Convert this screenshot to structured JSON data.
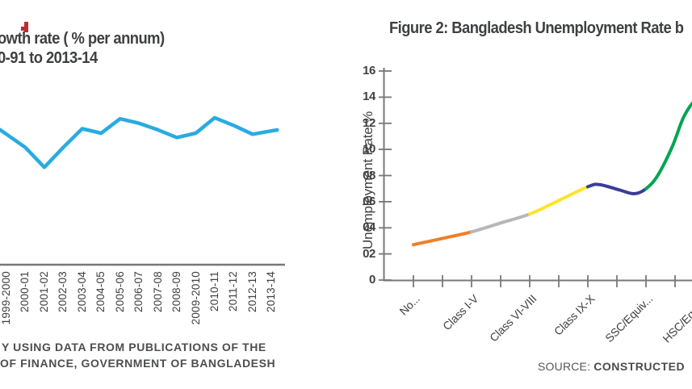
{
  "page": {
    "background_color": "#FFFFFF",
    "red_fragment_color": "#BE2B30"
  },
  "left_chart": {
    "title_line1": "owth rate ( % per annum)",
    "title_line2": "0-91 to 2013-14",
    "line_color": "#29ABE2",
    "axis_color": "#77787B",
    "x_labels": [
      "1999-2000",
      "2000-01",
      "2001-02",
      "2002-03",
      "2003-04",
      "2004-05",
      "2005-06",
      "2006-07",
      "2007-08",
      "2008-09",
      "2009-2010",
      "2010-11",
      "2011-12",
      "2012-13",
      "2013-14"
    ],
    "source_line1": "Y USING DATA FROM PUBLICATIONS OF THE",
    "source_line2": "OF FINANCE, GOVERNMENT OF BANGLADESH"
  },
  "right_chart": {
    "title": "Figure 2: Bangladesh Unemployment Rate b",
    "y_axis_label": "Unemployment Rate %",
    "y_tick_labels": [
      "16",
      "14",
      "12",
      "10",
      "08",
      "06",
      "04",
      "02",
      "0"
    ],
    "x_labels": [
      "No...",
      "Class I-V",
      "Class VI-VIII",
      "Class IX-X",
      "SSC/Equiv...",
      "HSC/Equiv..."
    ],
    "axis_color": "#77787B",
    "source_prefix": "SOURCE:",
    "source_bold": "CONSTRUCTED"
  },
  "chart_data": [
    {
      "type": "line",
      "title": "owth rate ( % per annum) 0-91 to 2013-14",
      "categories": [
        "1999-2000",
        "2000-01",
        "2001-02",
        "2002-03",
        "2003-04",
        "2004-05",
        "2005-06",
        "2006-07",
        "2007-08",
        "2008-09",
        "2009-2010",
        "2010-11",
        "2011-12",
        "2012-13",
        "2013-14"
      ],
      "values": [
        5.9,
        5.3,
        4.4,
        5.3,
        6.15,
        5.95,
        6.6,
        6.4,
        6.1,
        5.75,
        5.95,
        6.65,
        6.3,
        5.9,
        6.05
      ],
      "xlabel": "",
      "ylabel": "",
      "line_color": "#29ABE2",
      "y_axis_visible": false,
      "crop_note": "chart cropped at left edge; y-axis not visible, values estimated from line position"
    },
    {
      "type": "line",
      "title": "Figure 2: Bangladesh Unemployment Rate b",
      "categories": [
        "No...",
        "Class I-V",
        "Class VI-VIII",
        "Class IX-X",
        "SSC/Equiv...",
        "HSC/Equiv..."
      ],
      "values": [
        2.7,
        3.7,
        5.05,
        7.15,
        7.0,
        null
      ],
      "visible_end_value": 13.6,
      "xlabel": "",
      "ylabel": "Unemployment Rate %",
      "ylim": [
        0,
        16
      ],
      "y_ticks": [
        0,
        2,
        4,
        6,
        8,
        10,
        12,
        14,
        16
      ],
      "grid": false,
      "crop_note": "curve cut by right edge while still rising; last category value not visible",
      "curve_points": [
        [
          0,
          2.72
        ],
        [
          0.5,
          3.2
        ],
        [
          1,
          3.7
        ],
        [
          1.5,
          4.38
        ],
        [
          2,
          5.06
        ],
        [
          2.5,
          6.1
        ],
        [
          3,
          7.15
        ],
        [
          3.2,
          7.32
        ],
        [
          3.55,
          6.9
        ],
        [
          3.8,
          6.62
        ],
        [
          4,
          7.0
        ],
        [
          4.2,
          8.0
        ],
        [
          4.45,
          10.2
        ],
        [
          4.65,
          12.5
        ],
        [
          4.85,
          13.8
        ],
        [
          5.05,
          14.3
        ]
      ],
      "segments": [
        {
          "name": "no-education",
          "color": "#F07F28",
          "from": 0,
          "to": 1
        },
        {
          "name": "class-i-v",
          "color": "#B5B7B9",
          "from": 1,
          "to": 2
        },
        {
          "name": "class-vi-viii",
          "color": "#FFE32D",
          "from": 2,
          "to": 3
        },
        {
          "name": "class-ix-x",
          "color": "#3A3D96",
          "from": 3,
          "to": 4
        },
        {
          "name": "ssc-equiv",
          "color": "#00A551",
          "from": 4,
          "to": 5.05
        }
      ]
    }
  ]
}
